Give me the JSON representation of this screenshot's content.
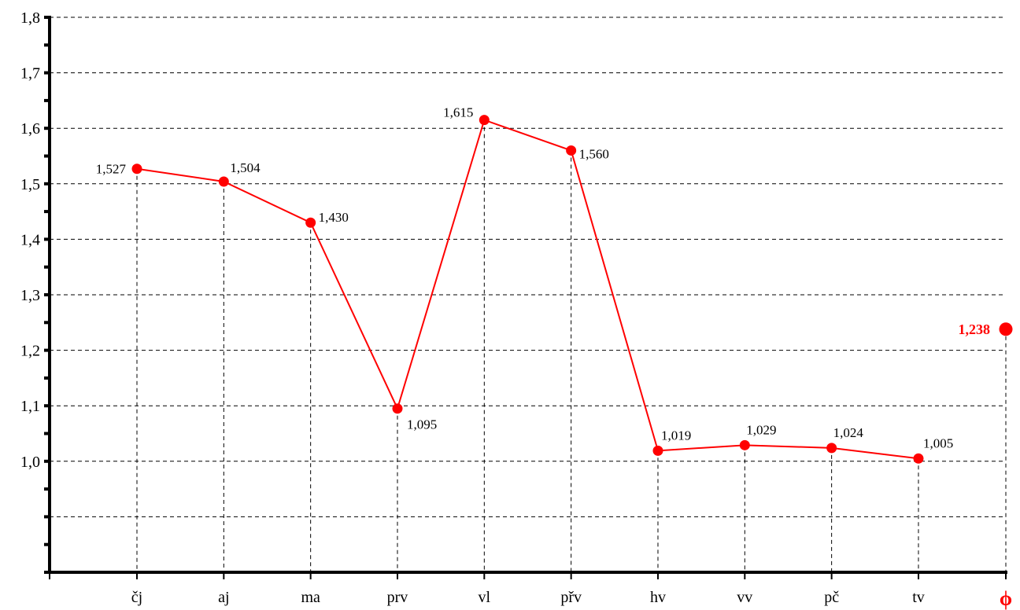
{
  "chart_data": {
    "type": "line",
    "categories": [
      "čj",
      "aj",
      "ma",
      "prv",
      "vl",
      "přv",
      "hv",
      "vv",
      "pč",
      "tv"
    ],
    "values": [
      1.527,
      1.504,
      1.43,
      1.095,
      1.615,
      1.56,
      1.019,
      1.029,
      1.024,
      1.005
    ],
    "value_labels": [
      "1,527",
      "1,504",
      "1,430",
      "1,095",
      "1,615",
      "1,560",
      "1,019",
      "1,029",
      "1,024",
      "1,005"
    ],
    "average": {
      "category": "ϕ",
      "value": 1.238,
      "label": "1,238"
    },
    "y_ticks": [
      {
        "value": 1.0,
        "label": "1,0"
      },
      {
        "value": 1.1,
        "label": "1,1"
      },
      {
        "value": 1.2,
        "label": "1,2"
      },
      {
        "value": 1.3,
        "label": "1,3"
      },
      {
        "value": 1.4,
        "label": "1,4"
      },
      {
        "value": 1.5,
        "label": "1,5"
      },
      {
        "value": 1.6,
        "label": "1,6"
      },
      {
        "value": 1.7,
        "label": "1,7"
      },
      {
        "value": 1.8,
        "label": "1,8"
      }
    ],
    "ylim": [
      0.8,
      1.8
    ],
    "title": "",
    "xlabel": "",
    "ylabel": "",
    "grid": true,
    "colors": {
      "series": "#ff0000",
      "axis": "#000000",
      "grid": "#000000"
    }
  }
}
